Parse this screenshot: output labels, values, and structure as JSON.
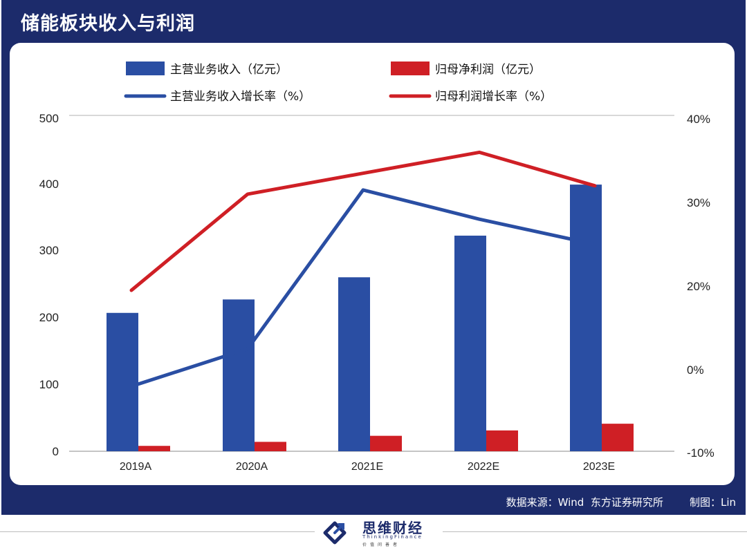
{
  "title": "储能板块收入与利润",
  "source_text": "数据来源：Wind  东方证券研究所        制图：Lin",
  "logo": {
    "name_cn": "思维财经",
    "name_en": "ThinkingFinance",
    "tagline": "价值间善者"
  },
  "colors": {
    "frame": "#1c2b6b",
    "revenue": "#2a4ea3",
    "profit": "#cf1f25",
    "gridline": "#b0b0b0"
  },
  "chart_data": {
    "type": "bar",
    "categories": [
      "2019A",
      "2020A",
      "2021E",
      "2022E",
      "2023E"
    ],
    "series": [
      {
        "name": "主营业务收入（亿元）",
        "type": "bar",
        "axis": "left",
        "color": "#2a4ea3",
        "values": [
          206,
          226,
          259,
          321,
          397
        ]
      },
      {
        "name": "归母净利润（亿元）",
        "type": "bar",
        "axis": "left",
        "color": "#cf1f25",
        "values": [
          8,
          14,
          23,
          31,
          41
        ]
      },
      {
        "name": "主营业务收入增长率（%）",
        "type": "line",
        "axis": "right",
        "color": "#2a4ea3",
        "values": [
          -2,
          5,
          31.5,
          28,
          25
        ]
      },
      {
        "name": "归母利润增长率（%）",
        "type": "line",
        "axis": "right",
        "color": "#cf1f25",
        "values": [
          19,
          31,
          33.5,
          36,
          32
        ]
      }
    ],
    "y_left": {
      "min": 0,
      "max": 500,
      "ticks": [
        "0",
        "100",
        "200",
        "300",
        "400",
        "500"
      ]
    },
    "y_right": {
      "min": -10,
      "max": 40,
      "ticks": [
        "-10%",
        "0%",
        "20%",
        "30%",
        "40%"
      ]
    },
    "legend_position": "top",
    "grid": "top-line-only"
  }
}
